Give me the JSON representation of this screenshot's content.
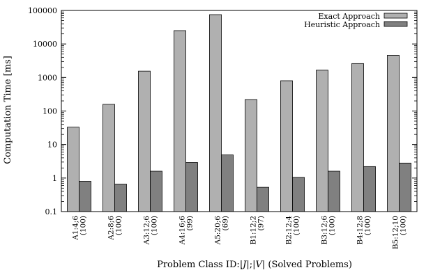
{
  "chart_data": {
    "type": "bar",
    "title": "",
    "xlabel": "Problem Class ID:|J|;|V| (Solved Problems)",
    "ylabel": "Computation Time [ms]",
    "yscale": "log",
    "ylim": [
      0.1,
      100000
    ],
    "yticks": [
      "0.1",
      "1",
      "10",
      "100",
      "1000",
      "10000",
      "100000"
    ],
    "legend_position": "top-right",
    "categories": [
      {
        "id": "A1:4;6",
        "solved": "(100)"
      },
      {
        "id": "A2:8;6",
        "solved": "(100)"
      },
      {
        "id": "A3:12;6",
        "solved": "(100)"
      },
      {
        "id": "A4:16;6",
        "solved": "(99)"
      },
      {
        "id": "A5:20;6",
        "solved": "(69)"
      },
      {
        "id": "B1:12;2",
        "solved": "(97)"
      },
      {
        "id": "B2:12;4",
        "solved": "(100)"
      },
      {
        "id": "B3:12;6",
        "solved": "(100)"
      },
      {
        "id": "B4:12;8",
        "solved": "(100)"
      },
      {
        "id": "B5:12;10",
        "solved": "(100)"
      }
    ],
    "series": [
      {
        "name": "Exact Approach",
        "color": "#b0b0b0",
        "values": [
          33,
          158,
          1550,
          25000,
          75000,
          220,
          800,
          1650,
          2600,
          4600
        ]
      },
      {
        "name": "Heuristic Approach",
        "color": "#808080",
        "values": [
          0.8,
          0.66,
          1.6,
          2.9,
          4.9,
          0.53,
          1.05,
          1.6,
          2.2,
          2.8
        ]
      }
    ]
  }
}
